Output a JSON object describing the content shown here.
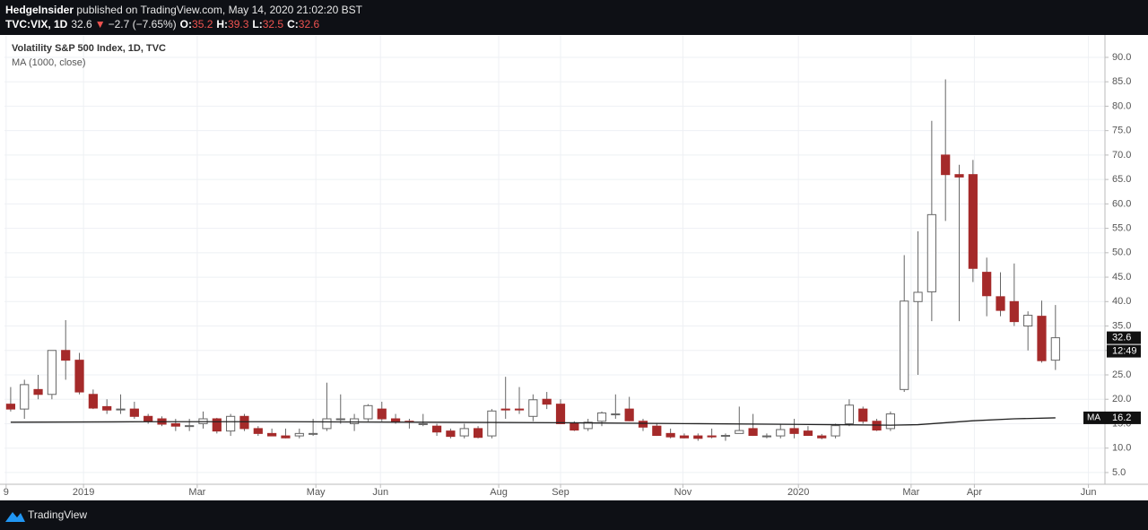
{
  "header": {
    "author": "HedgeInsider",
    "published": " published on TradingView.com, May 14, 2020 21:02:20 BST",
    "symbol": "TVC:VIX, 1D",
    "last": "32.6",
    "change": "−2.7 (−7.65%)",
    "o_label": "O:",
    "o": "35.2",
    "h_label": "H:",
    "h": "39.3",
    "l_label": "L:",
    "l": "32.5",
    "c_label": "C:",
    "c": "32.6"
  },
  "chart_data": {
    "type": "candlestick",
    "title": "Volatility S&P 500 Index, 1D, TVC",
    "x": [
      0,
      1,
      2,
      3,
      4,
      5,
      6,
      7,
      8,
      9,
      10,
      11,
      12,
      13,
      14,
      15,
      16,
      17,
      18,
      19,
      20,
      21,
      22,
      23,
      24,
      25,
      26,
      27,
      28,
      29,
      30,
      31,
      32,
      33,
      34,
      35,
      36,
      37,
      38,
      39,
      40,
      41,
      42,
      43,
      44,
      45,
      46,
      47,
      48,
      49,
      50,
      51,
      52,
      53,
      54,
      55,
      56,
      57,
      58,
      59,
      60,
      61,
      62,
      63,
      64,
      65,
      66,
      67,
      68,
      69,
      70,
      71,
      72,
      73,
      74,
      75,
      76
    ],
    "open": [
      19,
      18,
      22,
      21,
      30,
      28,
      21,
      18.5,
      18,
      18,
      16.5,
      16,
      15,
      14.5,
      15,
      16,
      13.5,
      16.5,
      14,
      13,
      12.5,
      12.5,
      13,
      14,
      16,
      15,
      16,
      18,
      16,
      15.5,
      15,
      14.5,
      13.5,
      12.5,
      14,
      12.5,
      18,
      18,
      16.5,
      20,
      19,
      15,
      14,
      15.5,
      17,
      18,
      15.5,
      14.5,
      13,
      12.5,
      12.5,
      12.5,
      12.5,
      13,
      14,
      12.5,
      12.5,
      14,
      13.5,
      12.5,
      12.5,
      15,
      18,
      15.5,
      14,
      22,
      40,
      42,
      70,
      66,
      66,
      46,
      41,
      40,
      35,
      37,
      28
    ],
    "high": [
      22.5,
      24,
      25,
      30,
      36.2,
      29.5,
      22,
      20,
      21,
      19.5,
      17,
      16.5,
      16,
      16,
      17.5,
      16.2,
      17,
      17,
      14.5,
      14,
      14,
      14,
      16,
      23.4,
      21,
      17,
      19,
      19.5,
      17,
      16,
      17,
      15,
      14,
      15,
      14.5,
      18,
      24.6,
      22.5,
      21,
      21.5,
      20,
      15.5,
      16,
      17.5,
      21,
      20.5,
      16,
      15,
      14,
      13,
      13,
      14,
      13,
      18.5,
      17,
      13,
      15,
      16,
      14.5,
      12.9,
      15,
      20,
      18.5,
      16,
      17.5,
      49.5,
      54.4,
      77,
      85.5,
      68,
      69,
      49,
      46,
      47.8,
      38,
      40.2,
      39.3
    ],
    "low": [
      17.5,
      16,
      20,
      20,
      24,
      21,
      18,
      17,
      17,
      16,
      15,
      14.5,
      13.5,
      13.5,
      14,
      13,
      12.5,
      13.5,
      12.5,
      12.5,
      12,
      12,
      12.5,
      13.5,
      15,
      13.5,
      15.5,
      15.5,
      15,
      14,
      14.5,
      12.5,
      12,
      12,
      12,
      12,
      16,
      17,
      15.5,
      18,
      15,
      13.5,
      13.5,
      14.5,
      16,
      15.5,
      13.5,
      12.5,
      12,
      12,
      11.5,
      12,
      11.5,
      13,
      12.5,
      12,
      12,
      12,
      12.5,
      11.8,
      12,
      14.5,
      15,
      13.5,
      13.5,
      21.5,
      25,
      36,
      56.5,
      36,
      44,
      37,
      37,
      35,
      30,
      27.5,
      26
    ],
    "close": [
      18,
      23,
      21,
      30,
      28,
      21.5,
      18.2,
      17.8,
      18,
      16.5,
      15.5,
      14.9,
      14.5,
      14.6,
      16,
      13.5,
      16.5,
      14,
      13,
      12.5,
      12.1,
      13,
      13,
      16,
      16,
      16,
      18.7,
      16,
      15.3,
      15.4,
      15,
      13.3,
      12.4,
      14,
      12.2,
      17.6,
      17.9,
      17.9,
      19.9,
      19,
      15,
      13.7,
      15.3,
      17.2,
      17,
      15.6,
      14.3,
      12.6,
      12.3,
      12.1,
      12,
      12.3,
      12.6,
      13.6,
      12.6,
      12.5,
      13.8,
      13,
      12.6,
      12.1,
      14.6,
      18.8,
      15.5,
      13.7,
      17,
      40.1,
      41.9,
      57.8,
      66,
      65.5,
      46.8,
      41.2,
      38.2,
      35.9,
      37.2,
      27.9,
      32.6
    ],
    "up_color": "#ffffff",
    "down_color": "#a52a2a",
    "wick_color": "#666666",
    "ma": {
      "name": "MA (1000, close)",
      "tag": "MA",
      "color": "#222222",
      "x": [
        0,
        10,
        20,
        30,
        40,
        50,
        60,
        64,
        66,
        70,
        73,
        76
      ],
      "values": [
        15.3,
        15.4,
        15.4,
        15.3,
        15.2,
        15,
        14.8,
        14.7,
        14.8,
        15.6,
        16,
        16.2
      ]
    },
    "countdown": "12:49",
    "xlim": [
      -0.45,
      79.6
    ],
    "ylim": [
      2.6,
      94.4
    ],
    "xticks": [
      {
        "value": -0.33,
        "label": "9"
      },
      {
        "value": 5.3,
        "label": "2019"
      },
      {
        "value": 13.57,
        "label": "Mar"
      },
      {
        "value": 22.2,
        "label": "May"
      },
      {
        "value": 26.9,
        "label": "Jun"
      },
      {
        "value": 35.5,
        "label": "Aug"
      },
      {
        "value": 40,
        "label": "Sep"
      },
      {
        "value": 48.9,
        "label": "Nov"
      },
      {
        "value": 57.3,
        "label": "2020"
      },
      {
        "value": 65.5,
        "label": "Mar"
      },
      {
        "value": 70.1,
        "label": "Apr"
      },
      {
        "value": 78.4,
        "label": "Jun"
      }
    ],
    "yticks": [
      {
        "value": 5,
        "label": "5.0"
      },
      {
        "value": 10,
        "label": "10.0"
      },
      {
        "value": 15,
        "label": "15.0"
      },
      {
        "value": 20,
        "label": "20.0"
      },
      {
        "value": 25,
        "label": "25.0"
      },
      {
        "value": 30,
        "label": "30.0"
      },
      {
        "value": 35,
        "label": "35.0"
      },
      {
        "value": 40,
        "label": "40.0"
      },
      {
        "value": 45,
        "label": "45.0"
      },
      {
        "value": 50,
        "label": "50.0"
      },
      {
        "value": 55,
        "label": "55.0"
      },
      {
        "value": 60,
        "label": "60.0"
      },
      {
        "value": 65,
        "label": "65.0"
      },
      {
        "value": 70,
        "label": "70.0"
      },
      {
        "value": 75,
        "label": "75.0"
      },
      {
        "value": 80,
        "label": "80.0"
      },
      {
        "value": 85,
        "label": "85.0"
      },
      {
        "value": 90,
        "label": "90.0"
      }
    ],
    "grid": true
  },
  "footer": {
    "brand": "TradingView"
  }
}
